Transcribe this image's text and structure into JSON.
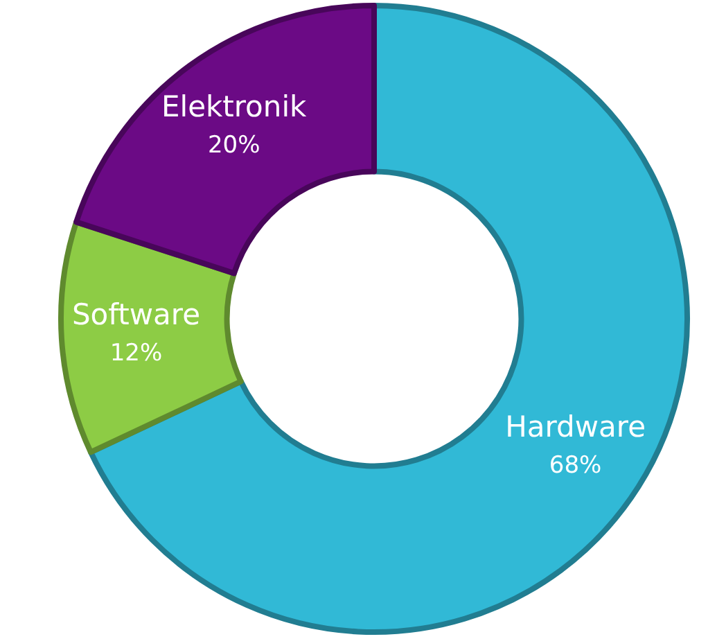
{
  "chart_data": {
    "type": "donut",
    "categories": [
      "Hardware",
      "Software",
      "Elektronik"
    ],
    "values": [
      68,
      12,
      20
    ],
    "colors": [
      "#31b9d6",
      "#8dcc45",
      "#6b0a85"
    ],
    "value_labels": [
      "68%",
      "12%",
      "20%"
    ]
  }
}
